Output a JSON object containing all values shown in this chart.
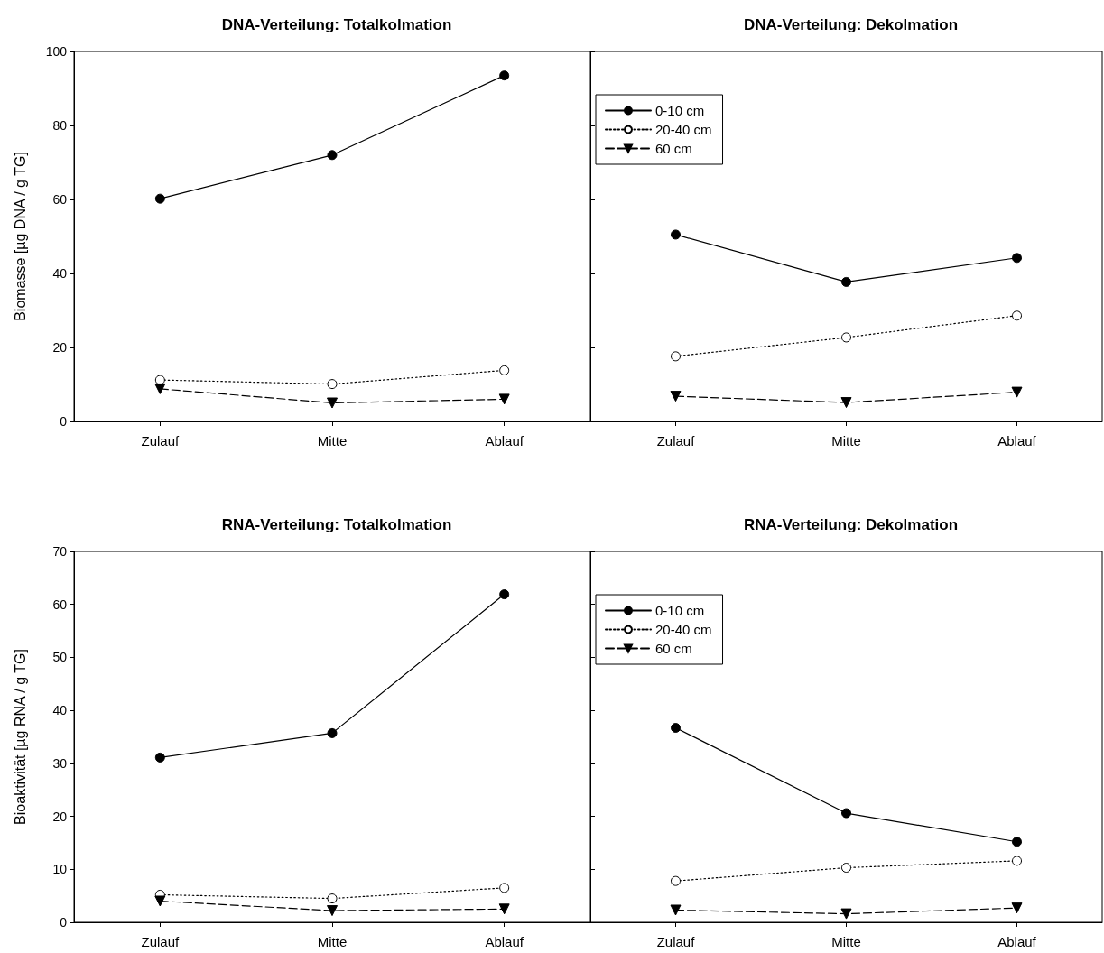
{
  "chart_data": [
    {
      "type": "line",
      "title": "DNA-Verteilung: Totalkolmation",
      "ylabel": "Biomasse [µg DNA / g TG]",
      "categories": [
        "Zulauf",
        "Mitte",
        "Ablauf"
      ],
      "ylim": [
        0,
        100
      ],
      "yticks": [
        0,
        20,
        40,
        60,
        80,
        100
      ],
      "grid": false,
      "legend": false,
      "series": [
        {
          "color": "#000000",
          "marker": "circle",
          "line_style": "solid",
          "values": [
            60.2,
            72.0,
            93.5
          ]
        },
        {
          "color": "#000000",
          "marker": "circle",
          "line_style": "dotted",
          "values": [
            11.2,
            10.1,
            13.8
          ]
        },
        {
          "color": "#000000",
          "marker": "triangle",
          "line_style": "dashed",
          "values": [
            8.8,
            5.0,
            6.0
          ]
        }
      ]
    },
    {
      "type": "line",
      "title": "DNA-Verteilung: Dekolmation",
      "categories": [
        "Zulauf",
        "Mitte",
        "Ablauf"
      ],
      "ylim": [
        0,
        100
      ],
      "yticks": [
        0,
        20,
        40,
        60,
        80,
        100
      ],
      "tick_labels": "x",
      "grid": false,
      "legend": "top left",
      "series": [
        {
          "name": "0-10 cm",
          "color": "#000000",
          "marker": "circle",
          "line_style": "solid",
          "values": [
            50.5,
            37.7,
            44.2
          ]
        },
        {
          "name": "20-40 cm",
          "color": "#000000",
          "marker": "circle",
          "line_style": "dotted",
          "values": [
            17.6,
            22.7,
            28.6
          ]
        },
        {
          "name": "60 cm",
          "color": "#000000",
          "marker": "triangle",
          "line_style": "dashed",
          "values": [
            6.8,
            5.1,
            7.9
          ]
        }
      ]
    },
    {
      "type": "line",
      "title": "RNA-Verteilung: Totalkolmation",
      "ylabel": "Bioaktivität [µg RNA / g TG]",
      "categories": [
        "Zulauf",
        "Mitte",
        "Ablauf"
      ],
      "ylim": [
        0,
        70
      ],
      "yticks": [
        0,
        10,
        20,
        30,
        40,
        50,
        60,
        70
      ],
      "grid": false,
      "legend": false,
      "series": [
        {
          "color": "#000000",
          "marker": "circle",
          "line_style": "solid",
          "values": [
            31.1,
            35.7,
            61.9
          ]
        },
        {
          "color": "#000000",
          "marker": "circle",
          "line_style": "dotted",
          "values": [
            5.2,
            4.5,
            6.5
          ]
        },
        {
          "color": "#000000",
          "marker": "triangle",
          "line_style": "dashed",
          "values": [
            4.0,
            2.2,
            2.5
          ]
        }
      ]
    },
    {
      "type": "line",
      "title": "RNA-Verteilung: Dekolmation",
      "categories": [
        "Zulauf",
        "Mitte",
        "Ablauf"
      ],
      "ylim": [
        0,
        70
      ],
      "yticks": [
        0,
        10,
        20,
        30,
        40,
        50,
        60,
        70
      ],
      "tick_labels": "x",
      "grid": false,
      "legend": "top left",
      "series": [
        {
          "name": "0-10 cm",
          "color": "#000000",
          "marker": "circle",
          "line_style": "solid",
          "values": [
            36.7,
            20.6,
            15.2
          ]
        },
        {
          "name": "20-40 cm",
          "color": "#000000",
          "marker": "circle",
          "line_style": "dotted",
          "values": [
            7.8,
            10.3,
            11.6
          ]
        },
        {
          "name": "60 cm",
          "color": "#000000",
          "marker": "triangle",
          "line_style": "dashed",
          "values": [
            2.3,
            1.6,
            2.7
          ]
        }
      ]
    }
  ]
}
